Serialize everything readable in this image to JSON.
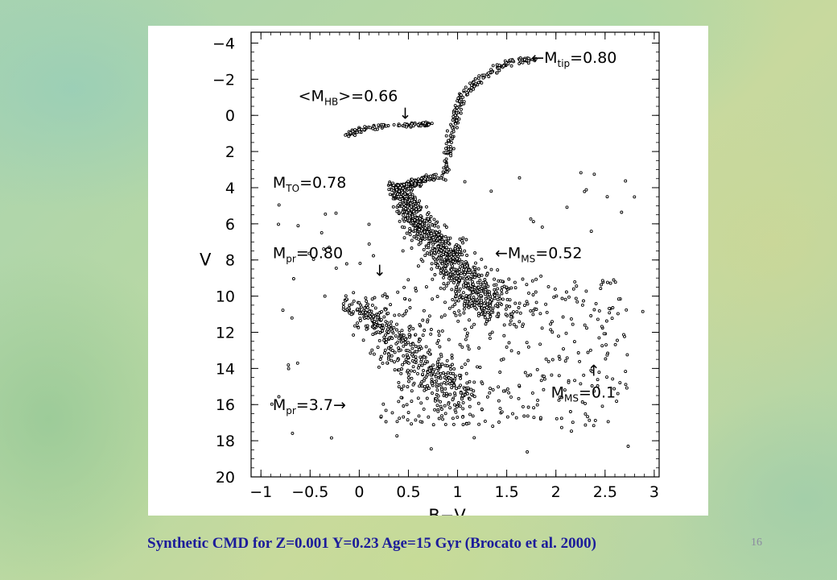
{
  "caption": "Synthetic CMD for Z=0.001 Y=0.23 Age=15 Gyr (Brocato et al. 2000)",
  "slide_number": "16",
  "chart_data": {
    "type": "scatter",
    "title": "",
    "xlabel": "B−V",
    "ylabel": "V",
    "xlim": [
      -1.1,
      3.05
    ],
    "ylim": [
      20,
      -4.6
    ],
    "y_inverted": true,
    "grid": false,
    "xticks": [
      -1,
      -0.5,
      0,
      0.5,
      1,
      1.5,
      2,
      2.5,
      3
    ],
    "xtick_labels": [
      "−1",
      "−0.5",
      "0",
      "0.5",
      "1",
      "1.5",
      "2",
      "2.5",
      "3"
    ],
    "yticks": [
      -4,
      -2,
      0,
      2,
      4,
      6,
      8,
      10,
      12,
      14,
      16,
      18,
      20
    ],
    "ytick_labels": [
      "−4",
      "−2",
      "0",
      "2",
      "4",
      "6",
      "8",
      "10",
      "12",
      "14",
      "16",
      "18",
      "20"
    ],
    "point_color": "#000000",
    "sequences": {
      "red_giant_branch": [
        [
          0.86,
          3.4
        ],
        [
          0.92,
          1.5
        ],
        [
          0.98,
          0.0
        ],
        [
          1.05,
          -1.0
        ],
        [
          1.22,
          -2.0
        ],
        [
          1.5,
          -2.9
        ],
        [
          1.78,
          -3.2
        ]
      ],
      "horizontal_branch": [
        [
          -0.12,
          1.1
        ],
        [
          0.0,
          0.75
        ],
        [
          0.3,
          0.55
        ],
        [
          0.6,
          0.5
        ],
        [
          0.72,
          0.5
        ]
      ],
      "turnoff_subgiant": [
        [
          0.34,
          3.8
        ],
        [
          0.46,
          4.0
        ],
        [
          0.6,
          3.7
        ],
        [
          0.75,
          3.4
        ]
      ],
      "main_sequence": [
        [
          0.4,
          4.2
        ],
        [
          0.5,
          5.0
        ],
        [
          0.62,
          6.0
        ],
        [
          0.78,
          7.0
        ],
        [
          0.95,
          8.0
        ],
        [
          1.08,
          9.0
        ],
        [
          1.22,
          10.0
        ],
        [
          1.38,
          10.8
        ]
      ],
      "lower_sequence": [
        [
          -0.05,
          10.5
        ],
        [
          0.15,
          11.5
        ],
        [
          0.35,
          12.5
        ],
        [
          0.6,
          13.6
        ],
        [
          0.85,
          14.8
        ],
        [
          1.05,
          16.0
        ]
      ]
    },
    "annotations": [
      {
        "text": "←M",
        "sub": "tip",
        "value": "=0.80",
        "x": 1.75,
        "y": -2.9
      },
      {
        "text": "<M",
        "sub": "HB",
        "value": ">=0.66",
        "arrow": "↓",
        "x": -0.62,
        "y": -0.8
      },
      {
        "text": "M",
        "sub": "TO",
        "value": "=0.78",
        "x": -0.88,
        "y": 4.0
      },
      {
        "text": "←M",
        "sub": "MS",
        "value": "=0.52",
        "x": 1.38,
        "y": 7.9
      },
      {
        "text": "M",
        "sub": "pr",
        "value": "=0.80",
        "arrow": "↓",
        "x": -0.88,
        "y": 7.9
      },
      {
        "text": "↑",
        "sub": "",
        "value": "",
        "x": 2.32,
        "y": 14.4
      },
      {
        "text": "M",
        "sub": "MS",
        "value": "=0.1",
        "x": 1.95,
        "y": 15.6
      },
      {
        "text": "M",
        "sub": "pr",
        "value": "=3.7→",
        "x": -0.88,
        "y": 16.3
      }
    ]
  }
}
